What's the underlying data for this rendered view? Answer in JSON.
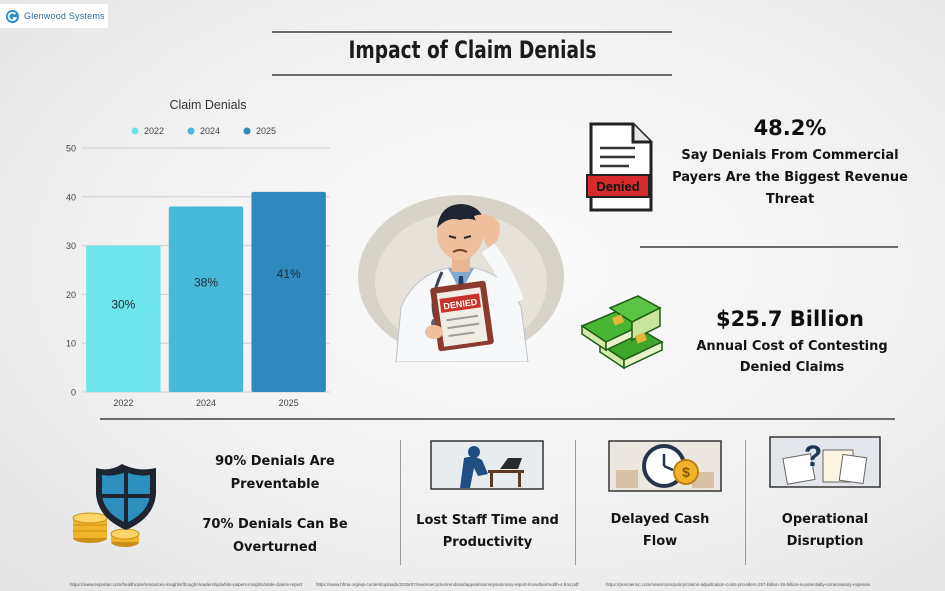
{
  "brand": {
    "name": "Glenwood Systems",
    "accent": "#2a8fc7"
  },
  "page_title": "Impact of Claim Denials",
  "chart_data": {
    "type": "bar",
    "title": "Claim Denials",
    "categories": [
      "2022",
      "2024",
      "2025"
    ],
    "values": [
      30,
      38,
      41
    ],
    "data_labels": [
      "30%",
      "38%",
      "41%"
    ],
    "legend": [
      "2022",
      "2024",
      "2025"
    ],
    "legend_placement": "top",
    "colors": [
      "#6de3ea",
      "#47b7da",
      "#2e89bd"
    ],
    "ylim": [
      0,
      50
    ],
    "yticks": [
      "0",
      "10",
      "20",
      "30",
      "40",
      "50"
    ],
    "grid": true,
    "xlabel": "",
    "ylabel": ""
  },
  "stats": {
    "stat1": {
      "value": "48.2%",
      "line1": "Say Denials From Commercial",
      "line2": "Payers Are the Biggest Revenue",
      "line3": "Threat",
      "icon_label": "Denied",
      "icon": "denied-document-icon"
    },
    "stat2": {
      "value": "$25.7 Billion",
      "line1": "Annual Cost of Contesting",
      "line2": "Denied Claims",
      "icon": "money-stack-icon"
    },
    "center_figure": {
      "stamp": "DENIED",
      "icon": "stressed-doctor-illustration"
    }
  },
  "bottom": {
    "prevent_line1": "90% Denials Are",
    "prevent_line2": "Preventable",
    "overturn_line1": "70% Denials Can Be",
    "overturn_line2": "Overturned",
    "staff_line1": "Lost Staff Time and",
    "staff_line2": "Productivity",
    "cash_line1": "Delayed Cash",
    "cash_line2": "Flow",
    "ops_line1": "Operational",
    "ops_line2": "Disruption"
  },
  "sources": [
    "https://www.experian.com/healthcare/resources-insights/thought-leadership/white-papers-insights/state-claims-report",
    "https://www.hfma.org/wp-content/uploads/2025/07/revenuecyclestrendsandappealssurveysummary-report-knowtheirrealth-4.fms.pdf",
    "https://premierinc.com/newsroom/policy/claims-adjudication-costs-providers-257-billion-18-billion-is-potentially-unnecessary-expense"
  ]
}
